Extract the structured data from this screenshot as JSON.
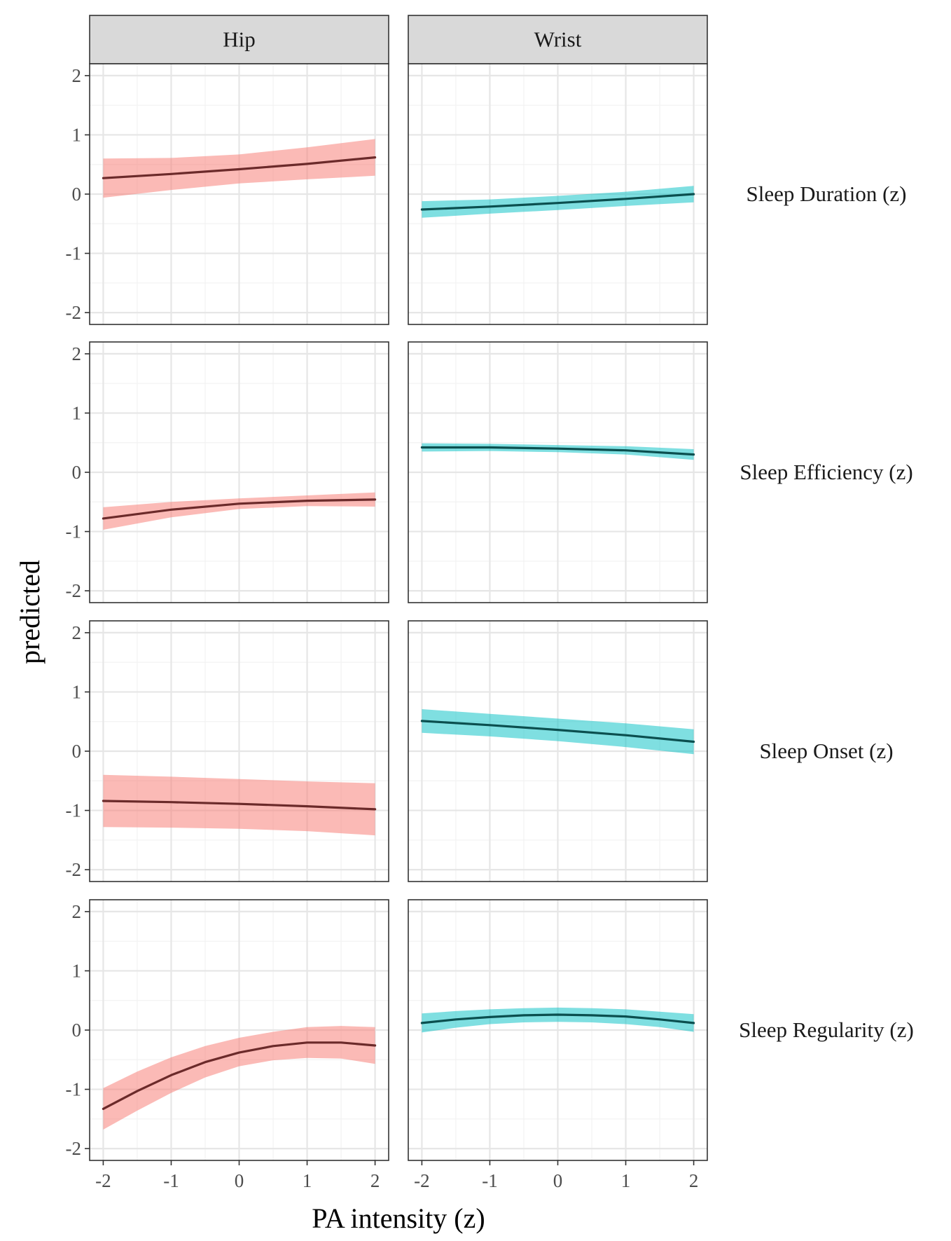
{
  "chart_data": {
    "type": "line",
    "xlabel": "PA intensity (z)",
    "ylabel": "predicted",
    "xlim": [
      -2.2,
      2.2
    ],
    "ylim": [
      -2.2,
      2.2
    ],
    "x_ticks": [
      -2,
      -1,
      0,
      1,
      2
    ],
    "y_ticks": [
      -2,
      -1,
      0,
      1,
      2
    ],
    "x_tick_labels": [
      "-2",
      "-1",
      "0",
      "1",
      "2"
    ],
    "y_tick_labels": [
      "-2",
      "-1",
      "0",
      "1",
      "2"
    ],
    "grid": true,
    "columns": [
      {
        "name": "Hip",
        "line_color": "#6b2a2a",
        "band_color": "#f8766d"
      },
      {
        "name": "Wrist",
        "line_color": "#0b4f4f",
        "band_color": "#00bfc4"
      }
    ],
    "rows": [
      {
        "name": "Sleep Duration (z)",
        "panels": [
          {
            "column": "Hip",
            "x": [
              -2,
              -1,
              0,
              1,
              2
            ],
            "y": [
              0.27,
              0.34,
              0.42,
              0.51,
              0.62
            ],
            "lower": [
              -0.06,
              0.07,
              0.18,
              0.25,
              0.31
            ],
            "upper": [
              0.6,
              0.61,
              0.67,
              0.79,
              0.93
            ]
          },
          {
            "column": "Wrist",
            "x": [
              -2,
              -1,
              0,
              1,
              2
            ],
            "y": [
              -0.26,
              -0.21,
              -0.15,
              -0.08,
              0.0
            ],
            "lower": [
              -0.4,
              -0.33,
              -0.27,
              -0.2,
              -0.14
            ],
            "upper": [
              -0.12,
              -0.09,
              -0.03,
              0.04,
              0.14
            ]
          }
        ]
      },
      {
        "name": "Sleep Efficiency (z)",
        "panels": [
          {
            "column": "Hip",
            "x": [
              -2,
              -1,
              0,
              1,
              2
            ],
            "y": [
              -0.78,
              -0.63,
              -0.53,
              -0.48,
              -0.46
            ],
            "lower": [
              -0.97,
              -0.76,
              -0.62,
              -0.57,
              -0.58
            ],
            "upper": [
              -0.59,
              -0.5,
              -0.44,
              -0.39,
              -0.34
            ]
          },
          {
            "column": "Wrist",
            "x": [
              -2,
              -1,
              0,
              1,
              2
            ],
            "y": [
              0.42,
              0.42,
              0.4,
              0.37,
              0.3
            ],
            "lower": [
              0.35,
              0.36,
              0.34,
              0.3,
              0.21
            ],
            "upper": [
              0.49,
              0.48,
              0.46,
              0.44,
              0.39
            ]
          }
        ]
      },
      {
        "name": "Sleep Onset (z)",
        "panels": [
          {
            "column": "Hip",
            "x": [
              -2,
              -1,
              0,
              1,
              2
            ],
            "y": [
              -0.84,
              -0.86,
              -0.89,
              -0.93,
              -0.98
            ],
            "lower": [
              -1.28,
              -1.29,
              -1.31,
              -1.35,
              -1.42
            ],
            "upper": [
              -0.4,
              -0.43,
              -0.47,
              -0.51,
              -0.54
            ]
          },
          {
            "column": "Wrist",
            "x": [
              -2,
              -1,
              0,
              1,
              2
            ],
            "y": [
              0.51,
              0.44,
              0.36,
              0.27,
              0.16
            ],
            "lower": [
              0.31,
              0.25,
              0.17,
              0.07,
              -0.05
            ],
            "upper": [
              0.71,
              0.63,
              0.55,
              0.47,
              0.37
            ]
          }
        ]
      },
      {
        "name": "Sleep Regularity (z)",
        "panels": [
          {
            "column": "Hip",
            "x": [
              -2,
              -1.5,
              -1,
              -0.5,
              0,
              0.5,
              1,
              1.5,
              2
            ],
            "y": [
              -1.33,
              -1.03,
              -0.76,
              -0.54,
              -0.38,
              -0.27,
              -0.21,
              -0.21,
              -0.26
            ],
            "lower": [
              -1.68,
              -1.36,
              -1.06,
              -0.8,
              -0.61,
              -0.51,
              -0.47,
              -0.48,
              -0.57
            ],
            "upper": [
              -0.98,
              -0.7,
              -0.46,
              -0.27,
              -0.13,
              -0.03,
              0.05,
              0.07,
              0.05
            ]
          },
          {
            "column": "Wrist",
            "x": [
              -2,
              -1.5,
              -1,
              -0.5,
              0,
              0.5,
              1,
              1.5,
              2
            ],
            "y": [
              0.12,
              0.18,
              0.22,
              0.25,
              0.26,
              0.25,
              0.23,
              0.18,
              0.12
            ],
            "lower": [
              -0.04,
              0.04,
              0.1,
              0.13,
              0.14,
              0.13,
              0.1,
              0.05,
              -0.03
            ],
            "upper": [
              0.28,
              0.32,
              0.35,
              0.37,
              0.38,
              0.37,
              0.35,
              0.31,
              0.27
            ]
          }
        ]
      }
    ]
  }
}
